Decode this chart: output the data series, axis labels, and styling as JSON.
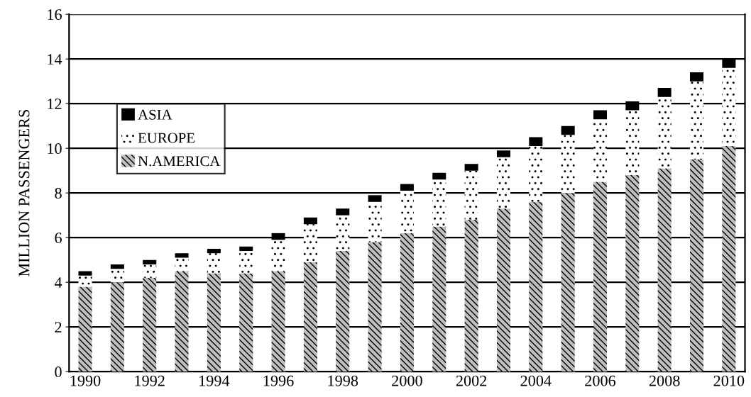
{
  "chart_data": {
    "type": "bar",
    "stacked": true,
    "ylabel": "MILLION PASSENGERS",
    "categories": [
      "1990",
      null,
      "1992",
      null,
      "1994",
      null,
      "1996",
      null,
      "1998",
      null,
      "2000",
      null,
      "2002",
      null,
      "2004",
      null,
      "2006",
      null,
      "2008",
      null,
      "2010"
    ],
    "series": [
      {
        "name": "N.AMERICA",
        "color": "#bfbfbf",
        "values": [
          3.8,
          4.0,
          4.2,
          4.5,
          4.4,
          4.4,
          4.5,
          4.9,
          5.4,
          5.8,
          6.2,
          6.5,
          6.8,
          7.3,
          7.6,
          8.0,
          8.5,
          8.8,
          9.1,
          9.5,
          10.1
        ]
      },
      {
        "name": "EUROPE",
        "color": "#ffffff",
        "values": [
          0.5,
          0.6,
          0.6,
          0.6,
          0.9,
          1.0,
          1.4,
          1.7,
          1.6,
          1.8,
          1.9,
          2.1,
          2.2,
          2.3,
          2.5,
          2.6,
          2.8,
          2.9,
          3.2,
          3.5,
          3.5
        ]
      },
      {
        "name": "ASIA",
        "color": "#000000",
        "values": [
          0.2,
          0.2,
          0.2,
          0.2,
          0.2,
          0.2,
          0.3,
          0.3,
          0.3,
          0.3,
          0.3,
          0.3,
          0.3,
          0.3,
          0.4,
          0.4,
          0.4,
          0.4,
          0.4,
          0.4,
          0.4
        ]
      }
    ],
    "ylim": [
      0,
      16
    ],
    "yticks": [
      0,
      2,
      4,
      6,
      8,
      10,
      12,
      14,
      16
    ],
    "grid": "y",
    "legend": "top left"
  }
}
